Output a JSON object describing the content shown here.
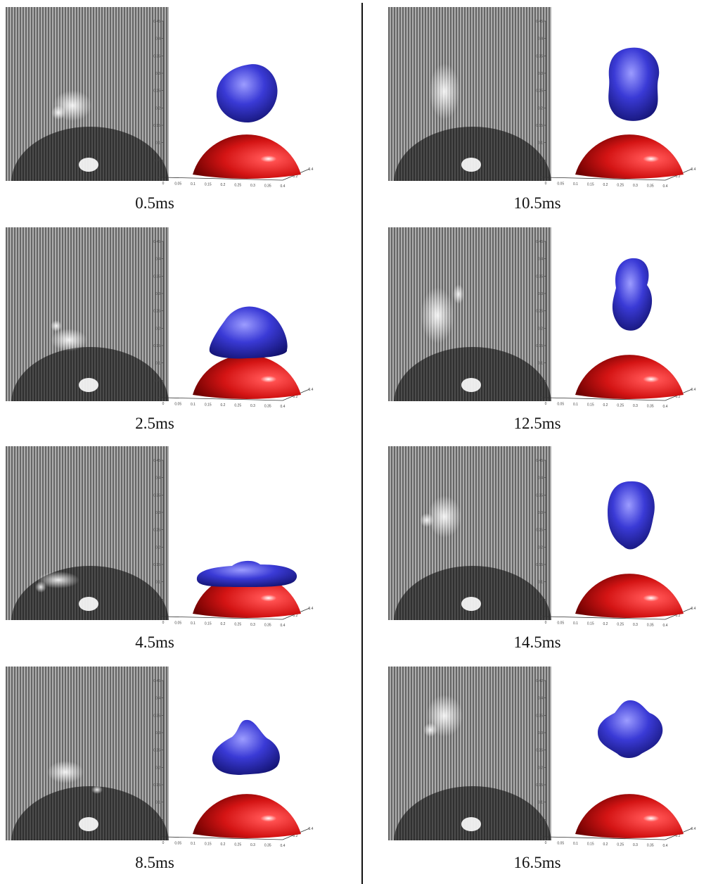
{
  "figure": {
    "panels": [
      {
        "time": "0.5ms",
        "shape": "round",
        "axis_top": "0.45"
      },
      {
        "time": "2.5ms",
        "shape": "cap",
        "axis_top": "0.45"
      },
      {
        "time": "4.5ms",
        "shape": "flat",
        "axis_top": "0.45"
      },
      {
        "time": "8.5ms",
        "shape": "peak",
        "axis_top": "0.45"
      },
      {
        "time": "10.5ms",
        "shape": "tall",
        "axis_top": "0.45"
      },
      {
        "time": "12.5ms",
        "shape": "pear",
        "axis_top": "0.45"
      },
      {
        "time": "14.5ms",
        "shape": "detach",
        "axis_top": "0.45"
      },
      {
        "time": "16.5ms",
        "shape": "float",
        "axis_top": "0.42"
      }
    ],
    "z_ticks": [
      "0.45",
      "0.4",
      "0.35",
      "0.3",
      "0.25",
      "0.2",
      "0.15",
      "0.1",
      "0.05",
      "0"
    ],
    "x_ticks": [
      "0",
      "0.05",
      "0.1",
      "0.15",
      "0.2",
      "0.25",
      "0.3",
      "0.35",
      "0.4"
    ],
    "y_ticks": [
      "0.2",
      "0.4"
    ],
    "colors": {
      "bubble": "#3a3ad6",
      "sphere": "#d41414",
      "photo_stripe_dark": "#5a5a5a",
      "photo_stripe_light": "#b8b8b8",
      "divider": "#111111"
    }
  }
}
